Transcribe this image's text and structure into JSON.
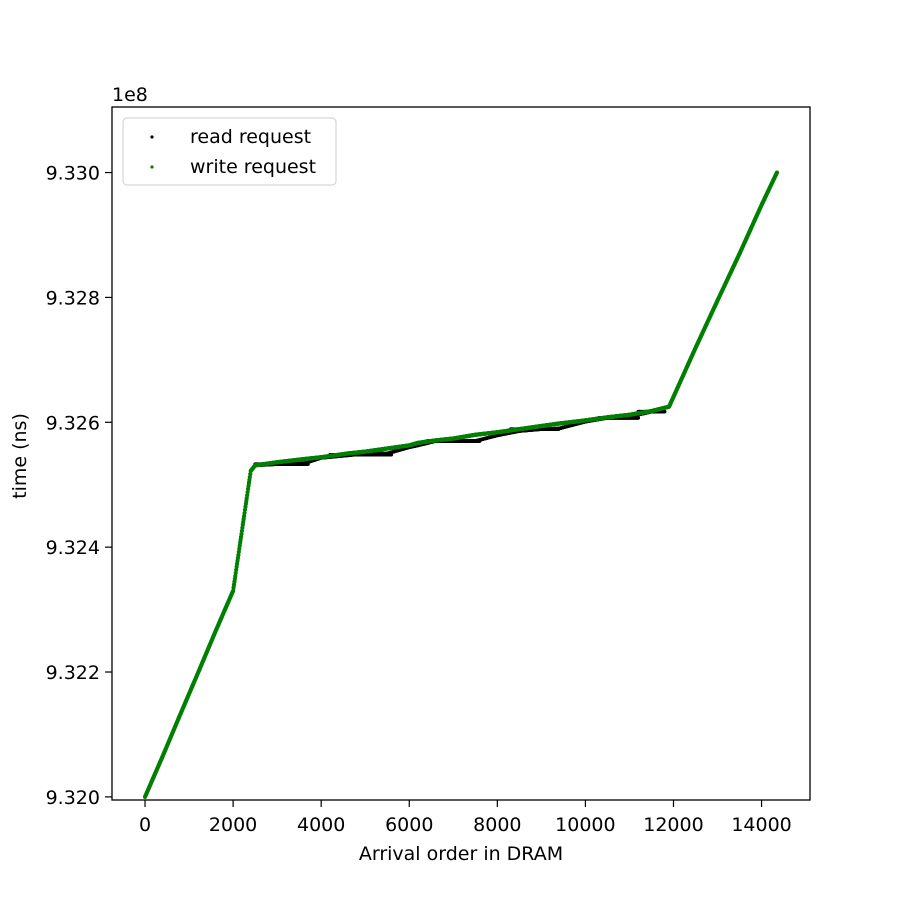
{
  "chart_data": {
    "type": "scatter",
    "title": "",
    "xlabel": "Arrival order in DRAM",
    "ylabel": "time (ns)",
    "y_offset_label": "1e8",
    "xlim": [
      -750,
      15100
    ],
    "ylim": [
      9.31995,
      9.33105
    ],
    "x_ticks": [
      0,
      2000,
      4000,
      6000,
      8000,
      10000,
      12000,
      14000
    ],
    "x_tick_labels": [
      "0",
      "2000",
      "4000",
      "6000",
      "8000",
      "10000",
      "12000",
      "14000"
    ],
    "y_ticks": [
      9.32,
      9.322,
      9.324,
      9.326,
      9.328,
      9.33
    ],
    "y_tick_labels": [
      "9.320",
      "9.322",
      "9.324",
      "9.326",
      "9.328",
      "9.330"
    ],
    "grid": false,
    "legend_position": "upper-left",
    "series": [
      {
        "name": "read request",
        "color": "#000000",
        "x": [
          0,
          400,
          800,
          1200,
          1600,
          2000,
          2400,
          2500,
          3000,
          3600,
          4000,
          4600,
          5000,
          5500,
          6000,
          6200,
          6600,
          7000,
          7500,
          8000,
          8500,
          9000,
          9400,
          10000,
          10500,
          11000,
          11500,
          11900,
          12500,
          13000,
          13500,
          14000,
          14350
        ],
        "y": [
          9.32,
          9.32065,
          9.32132,
          9.32198,
          9.32265,
          9.3233,
          9.32522,
          9.32531,
          9.32533,
          9.32534,
          9.32543,
          9.32547,
          9.3255,
          9.3255,
          9.3256,
          9.32563,
          9.3257,
          9.3257,
          9.3257,
          9.32579,
          9.32586,
          9.32589,
          9.3259,
          9.32601,
          9.32607,
          9.32609,
          9.32617,
          9.32625,
          9.32719,
          9.32795,
          9.3287,
          9.32948,
          9.33
        ]
      },
      {
        "name": "write request",
        "color": "#008000",
        "x": [
          0,
          400,
          800,
          1200,
          1600,
          2000,
          2400,
          2500,
          3000,
          3600,
          4000,
          4600,
          5000,
          5500,
          6000,
          6200,
          6600,
          7000,
          7500,
          8000,
          8500,
          9000,
          9400,
          10000,
          10500,
          11000,
          11500,
          11900,
          12500,
          13000,
          13500,
          14000,
          14350
        ],
        "y": [
          9.32,
          9.32065,
          9.32132,
          9.32198,
          9.32265,
          9.3233,
          9.32522,
          9.32531,
          9.32536,
          9.32541,
          9.32544,
          9.3255,
          9.32553,
          9.32558,
          9.32563,
          9.32567,
          9.32571,
          9.32574,
          9.3258,
          9.32584,
          9.32589,
          9.32594,
          9.32598,
          9.32603,
          9.32608,
          9.32612,
          9.32618,
          9.32625,
          9.32719,
          9.32795,
          9.3287,
          9.32948,
          9.33
        ]
      }
    ],
    "read_only_flat_segments": [
      {
        "x_start": 2500,
        "x_end": 3700,
        "y": 9.32533
      },
      {
        "x_start": 4200,
        "x_end": 5600,
        "y": 9.32548
      },
      {
        "x_start": 6400,
        "x_end": 7600,
        "y": 9.3257
      },
      {
        "x_start": 8300,
        "x_end": 9400,
        "y": 9.32589
      },
      {
        "x_start": 10300,
        "x_end": 11200,
        "y": 9.32607
      },
      {
        "x_start": 11200,
        "x_end": 11800,
        "y": 9.32617
      }
    ]
  }
}
